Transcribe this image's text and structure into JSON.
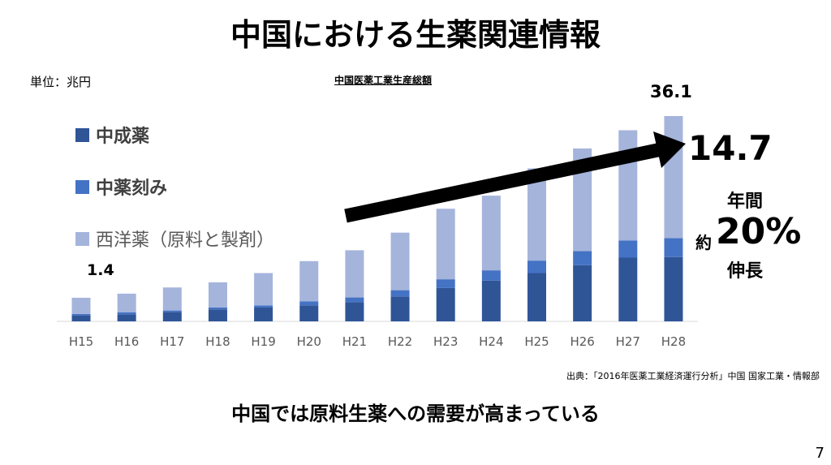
{
  "title": "中国における生薬関連情報",
  "unit_label": "単位：兆円",
  "source": "出典：「2016年医薬工業経済運行分析」中国 国家工業・情報部",
  "message": "中国では原料生薬への需要が高まっている",
  "page_number": "7",
  "annotations": {
    "start_value": "1.4",
    "end_value": "36.1",
    "arrow_value": "14.7",
    "growth_line1": "年間",
    "growth_prefix": "約",
    "growth_pct": "20%",
    "growth_line3": "伸長"
  },
  "chart_data": {
    "type": "bar",
    "stacked": true,
    "title": "中国医薬工業生産総額",
    "xlabel": "",
    "ylabel": "兆円",
    "ylim": [
      0,
      36.1
    ],
    "grid": false,
    "legend_position": "left",
    "categories": [
      "H15",
      "H16",
      "H17",
      "H18",
      "H19",
      "H20",
      "H21",
      "H22",
      "H23",
      "H24",
      "H25",
      "H26",
      "H27",
      "H28"
    ],
    "series": [
      {
        "name": "中成薬",
        "color": "#2f5597",
        "values": [
          1.05,
          1.24,
          1.67,
          2.1,
          2.43,
          2.81,
          3.39,
          4.34,
          5.87,
          7.16,
          8.49,
          9.87,
          11.2,
          11.3
        ]
      },
      {
        "name": "中薬刻み",
        "color": "#4472c4",
        "values": [
          0.24,
          0.33,
          0.24,
          0.33,
          0.38,
          0.72,
          0.81,
          1.14,
          1.53,
          1.81,
          2.19,
          2.48,
          3.0,
          3.34
        ]
      },
      {
        "name": "西洋薬（原料と製剤）",
        "color": "#a5b4db",
        "values": [
          2.86,
          3.3,
          4.05,
          4.44,
          5.68,
          7.06,
          8.3,
          10.12,
          12.4,
          13.13,
          16.22,
          18.05,
          19.4,
          21.46
        ]
      }
    ]
  }
}
